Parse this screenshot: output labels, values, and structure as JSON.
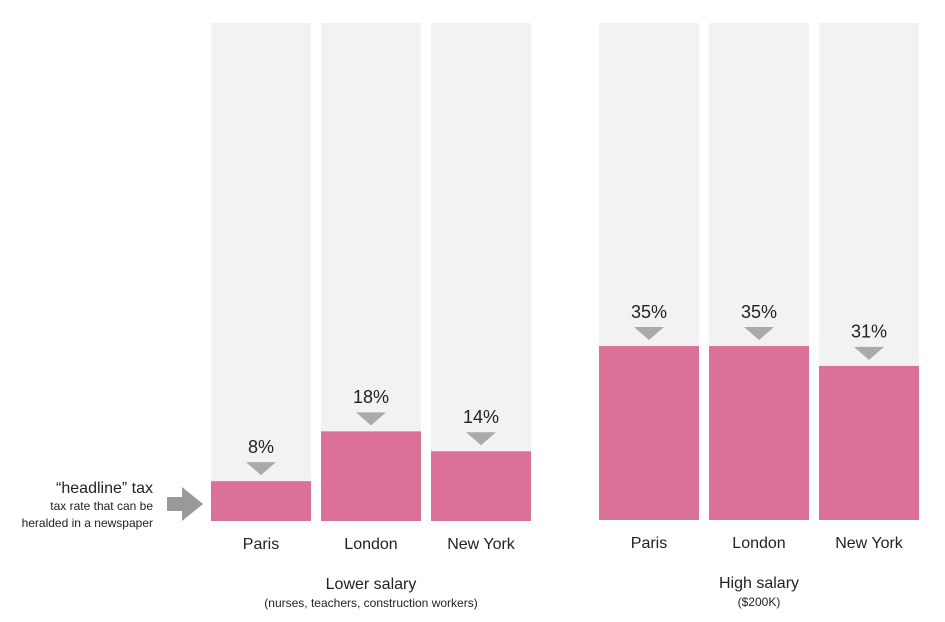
{
  "chart_data": [
    {
      "type": "bar",
      "title": "Lower salary",
      "subtitle": "(nurses, teachers, construction workers)",
      "categories": [
        "Paris",
        "London",
        "New York"
      ],
      "values": [
        8,
        18,
        14
      ],
      "value_labels": [
        "8%",
        "18%",
        "14%"
      ],
      "color": "#db7099",
      "ylim": [
        0,
        100
      ],
      "annotations": [
        "“headline” tax",
        "tax rate that can be",
        "heralded in a  newspaper"
      ]
    },
    {
      "type": "bar",
      "title": "High salary",
      "subtitle": "($200K)",
      "categories": [
        "Paris",
        "London",
        "New York"
      ],
      "values": [
        35,
        35,
        31
      ],
      "value_labels": [
        "35%",
        "35%",
        "31%"
      ],
      "color": "#db7099",
      "ylim": [
        0,
        100
      ]
    }
  ]
}
